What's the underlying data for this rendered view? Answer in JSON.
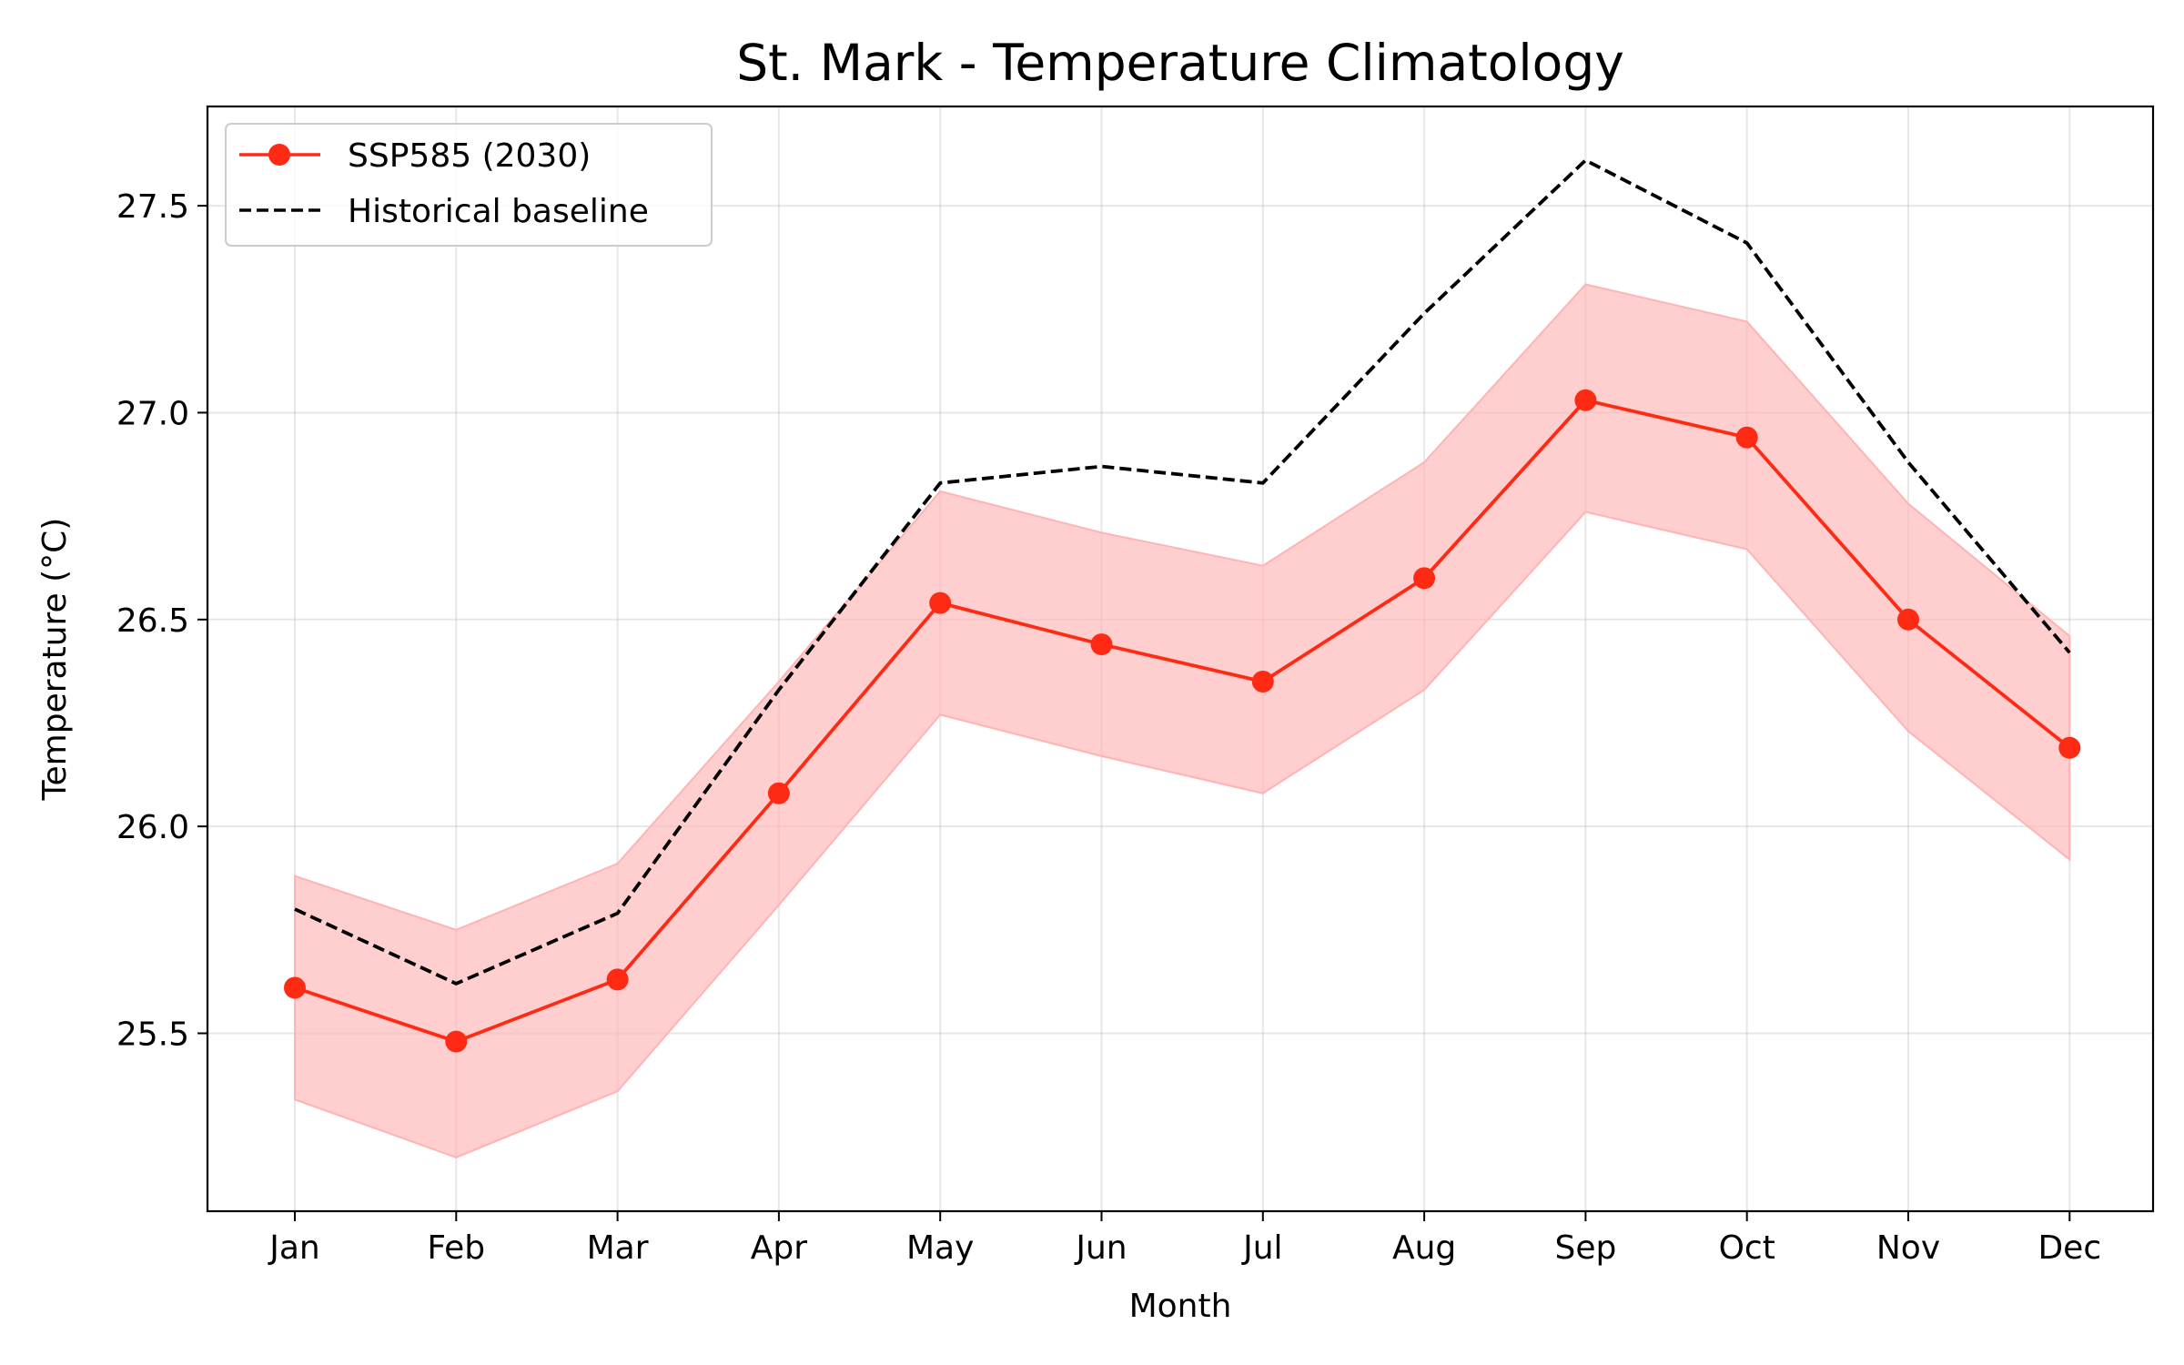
{
  "chart_data": {
    "type": "line",
    "title": "St. Mark - Temperature Climatology",
    "xlabel": "Month",
    "ylabel": "Temperature (°C)",
    "categories": [
      "Jan",
      "Feb",
      "Mar",
      "Apr",
      "May",
      "Jun",
      "Jul",
      "Aug",
      "Sep",
      "Oct",
      "Nov",
      "Dec"
    ],
    "ylim": [
      25.07,
      27.74
    ],
    "yticks": [
      "25.5",
      "26.0",
      "26.5",
      "27.0",
      "27.5"
    ],
    "grid": true,
    "legend_position": "upper-left",
    "series": [
      {
        "name": "SSP585 (2030)",
        "style": "solid-with-markers",
        "color": "#ff2a14",
        "values": [
          25.61,
          25.48,
          25.63,
          26.08,
          26.54,
          26.44,
          26.35,
          26.6,
          27.03,
          26.94,
          26.5,
          26.19
        ],
        "band_lower": [
          25.34,
          25.2,
          25.36,
          25.81,
          26.27,
          26.17,
          26.08,
          26.33,
          26.76,
          26.67,
          26.23,
          25.92
        ],
        "band_upper": [
          25.88,
          25.75,
          25.91,
          26.35,
          26.81,
          26.71,
          26.63,
          26.88,
          27.31,
          27.22,
          26.78,
          26.46
        ],
        "band_color": "#ffb3b3"
      },
      {
        "name": "Historical baseline",
        "style": "dashed",
        "color": "#000000",
        "values": [
          25.8,
          25.62,
          25.79,
          26.33,
          26.83,
          26.87,
          26.83,
          27.24,
          27.61,
          27.41,
          26.88,
          26.42
        ]
      }
    ]
  }
}
